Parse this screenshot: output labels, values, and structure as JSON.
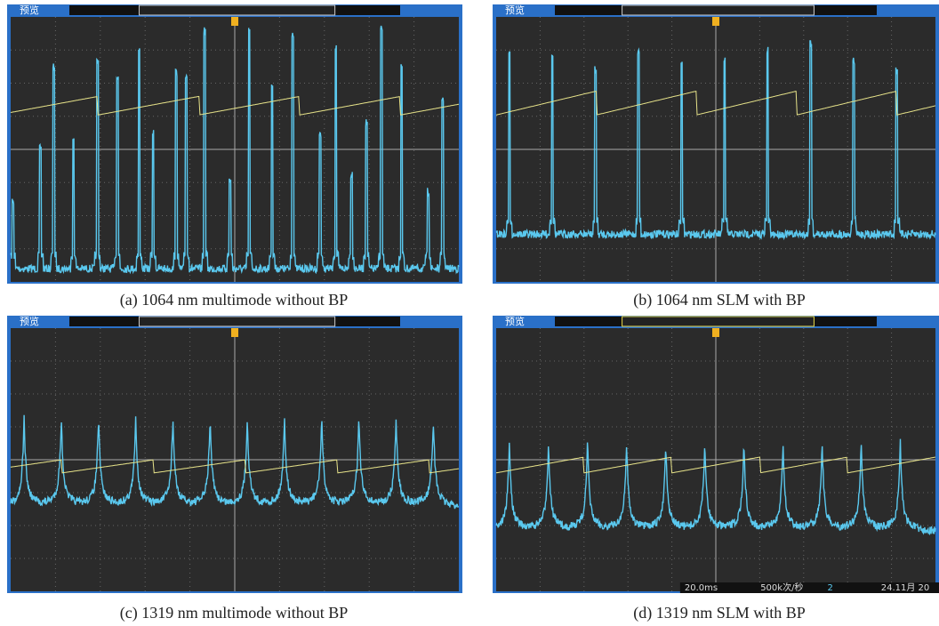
{
  "panels": [
    {
      "label": "预览",
      "caption": "(a) 1064 nm multimode without BP"
    },
    {
      "label": "预览",
      "caption": "(b) 1064 nm SLM with BP"
    },
    {
      "label": "预览",
      "caption": "(c) 1319 nm multimode without BP"
    },
    {
      "label": "预览",
      "caption": "(d) 1319 nm SLM with BP",
      "status": [
        "20.0ms",
        "500k次/秒",
        "2",
        "24.11月 20"
      ]
    }
  ]
}
